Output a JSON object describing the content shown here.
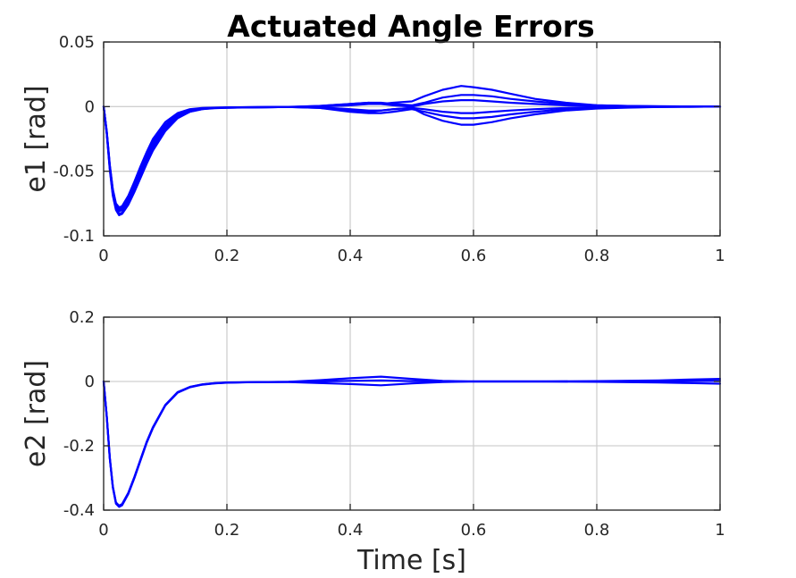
{
  "figure": {
    "title": "Actuated Angle Errors"
  },
  "colors": {
    "line": "#0000ff",
    "grid": "#d0d0d0",
    "axis": "#262626"
  },
  "chart_data": [
    {
      "type": "line",
      "title": "Actuated Angle Errors",
      "xlabel": "",
      "ylabel": "e1 [rad]",
      "xlim": [
        0,
        1
      ],
      "ylim": [
        -0.1,
        0.05
      ],
      "xticks": [
        0,
        0.2,
        0.4,
        0.6,
        0.8,
        1
      ],
      "xtick_labels": [
        "0",
        "0.2",
        "0.4",
        "0.6",
        "0.8",
        "1"
      ],
      "yticks": [
        -0.1,
        -0.05,
        0,
        0.05
      ],
      "ytick_labels": [
        "-0.1",
        "-0.05",
        "0",
        "0.05"
      ],
      "grid": true,
      "line_color": "#0000ff",
      "x": [
        0,
        0.005,
        0.01,
        0.015,
        0.02,
        0.025,
        0.03,
        0.04,
        0.05,
        0.06,
        0.07,
        0.08,
        0.1,
        0.12,
        0.14,
        0.16,
        0.18,
        0.2,
        0.25,
        0.3,
        0.35,
        0.4,
        0.43,
        0.45,
        0.47,
        0.5,
        0.52,
        0.55,
        0.58,
        0.6,
        0.63,
        0.66,
        0.7,
        0.75,
        0.8,
        0.85,
        0.9,
        0.95,
        1.0
      ],
      "series": [
        {
          "values": [
            0,
            -0.02,
            -0.046,
            -0.065,
            -0.076,
            -0.08,
            -0.079,
            -0.072,
            -0.062,
            -0.05,
            -0.039,
            -0.029,
            -0.015,
            -0.007,
            -0.003,
            -0.0015,
            -0.001,
            -0.0008,
            -0.0005,
            -0.0003,
            0,
            0.001,
            0.002,
            0.002,
            0.003,
            0.004,
            0.008,
            0.013,
            0.016,
            0.015,
            0.013,
            0.01,
            0.006,
            0.003,
            0.001,
            0.0005,
            0.0002,
            0.0001,
            0
          ]
        },
        {
          "values": [
            0,
            -0.021,
            -0.048,
            -0.068,
            -0.079,
            -0.083,
            -0.082,
            -0.075,
            -0.065,
            -0.053,
            -0.042,
            -0.032,
            -0.017,
            -0.008,
            -0.004,
            -0.002,
            -0.001,
            -0.0008,
            -0.0005,
            -0.0003,
            0.0005,
            0.002,
            0.003,
            0.003,
            0.002,
            0.001,
            0.003,
            0.007,
            0.009,
            0.009,
            0.008,
            0.006,
            0.004,
            0.002,
            0.001,
            0.0005,
            0.0002,
            0.0001,
            0
          ]
        },
        {
          "values": [
            0,
            -0.019,
            -0.045,
            -0.064,
            -0.075,
            -0.078,
            -0.077,
            -0.069,
            -0.058,
            -0.046,
            -0.035,
            -0.025,
            -0.012,
            -0.005,
            -0.002,
            -0.001,
            -0.0008,
            -0.0006,
            -0.0004,
            -0.0002,
            -0.0005,
            -0.002,
            -0.003,
            -0.003,
            -0.002,
            -0.001,
            -0.002,
            -0.004,
            -0.005,
            -0.005,
            -0.004,
            -0.003,
            -0.002,
            -0.001,
            -0.0005,
            -0.0003,
            -0.0002,
            -0.0001,
            0
          ]
        },
        {
          "values": [
            0,
            -0.02,
            -0.047,
            -0.066,
            -0.077,
            -0.081,
            -0.08,
            -0.073,
            -0.063,
            -0.051,
            -0.04,
            -0.03,
            -0.016,
            -0.008,
            -0.003,
            -0.0015,
            -0.001,
            -0.0008,
            -0.0005,
            -0.0003,
            -0.001,
            -0.004,
            -0.005,
            -0.005,
            -0.004,
            -0.002,
            -0.004,
            -0.007,
            -0.009,
            -0.009,
            -0.008,
            -0.006,
            -0.004,
            -0.002,
            -0.001,
            -0.0005,
            -0.0002,
            -0.0001,
            0
          ]
        },
        {
          "values": [
            0,
            -0.021,
            -0.049,
            -0.069,
            -0.08,
            -0.084,
            -0.083,
            -0.076,
            -0.066,
            -0.055,
            -0.044,
            -0.034,
            -0.019,
            -0.009,
            -0.004,
            -0.002,
            -0.0012,
            -0.0009,
            -0.0006,
            -0.0003,
            -0.001,
            -0.003,
            -0.004,
            -0.003,
            -0.002,
            -0.001,
            -0.006,
            -0.011,
            -0.014,
            -0.014,
            -0.012,
            -0.009,
            -0.006,
            -0.003,
            -0.0015,
            -0.0008,
            -0.0003,
            -0.0001,
            0
          ]
        },
        {
          "values": [
            0,
            -0.02,
            -0.046,
            -0.065,
            -0.076,
            -0.079,
            -0.078,
            -0.071,
            -0.06,
            -0.048,
            -0.037,
            -0.027,
            -0.014,
            -0.006,
            -0.0025,
            -0.0012,
            -0.0009,
            -0.0007,
            -0.0004,
            -0.0002,
            0.0005,
            0.002,
            0.003,
            0.002,
            0.001,
            0,
            0.002,
            0.004,
            0.005,
            0.005,
            0.004,
            0.003,
            0.002,
            0.001,
            0.0005,
            0.0002,
            0.0001,
            0,
            0
          ]
        }
      ]
    },
    {
      "type": "line",
      "title": "",
      "xlabel": "Time [s]",
      "ylabel": "e2 [rad]",
      "xlim": [
        0,
        1
      ],
      "ylim": [
        -0.4,
        0.2
      ],
      "xticks": [
        0,
        0.2,
        0.4,
        0.6,
        0.8,
        1
      ],
      "xtick_labels": [
        "0",
        "0.2",
        "0.4",
        "0.6",
        "0.8",
        "1"
      ],
      "yticks": [
        -0.4,
        -0.2,
        0,
        0.2
      ],
      "ytick_labels": [
        "-0.4",
        "-0.2",
        "0",
        "0.2"
      ],
      "grid": true,
      "line_color": "#0000ff",
      "x": [
        0,
        0.005,
        0.01,
        0.015,
        0.02,
        0.025,
        0.03,
        0.04,
        0.05,
        0.06,
        0.07,
        0.08,
        0.1,
        0.12,
        0.14,
        0.16,
        0.18,
        0.2,
        0.25,
        0.3,
        0.35,
        0.4,
        0.45,
        0.5,
        0.55,
        0.6,
        0.7,
        0.8,
        0.9,
        0.95,
        1.0
      ],
      "series": [
        {
          "values": [
            0,
            -0.11,
            -0.24,
            -0.33,
            -0.38,
            -0.39,
            -0.385,
            -0.35,
            -0.3,
            -0.245,
            -0.19,
            -0.145,
            -0.075,
            -0.035,
            -0.018,
            -0.01,
            -0.006,
            -0.004,
            -0.002,
            -0.001,
            0.004,
            0.01,
            0.015,
            0.008,
            0.002,
            0,
            0,
            0.001,
            0.003,
            0.006,
            0.008
          ]
        },
        {
          "values": [
            0,
            -0.108,
            -0.236,
            -0.326,
            -0.376,
            -0.386,
            -0.381,
            -0.346,
            -0.296,
            -0.241,
            -0.187,
            -0.142,
            -0.073,
            -0.033,
            -0.017,
            -0.009,
            -0.005,
            -0.003,
            -0.002,
            -0.002,
            -0.005,
            -0.008,
            -0.012,
            -0.006,
            -0.002,
            0,
            0,
            -0.001,
            -0.003,
            -0.005,
            -0.007
          ]
        },
        {
          "values": [
            0,
            -0.109,
            -0.238,
            -0.328,
            -0.378,
            -0.388,
            -0.383,
            -0.348,
            -0.298,
            -0.243,
            -0.188,
            -0.143,
            -0.074,
            -0.034,
            -0.017,
            -0.0095,
            -0.0055,
            -0.0035,
            -0.002,
            -0.0015,
            0,
            0.002,
            0.003,
            0.001,
            0,
            0,
            0,
            0,
            -0.001,
            0.001,
            0.002
          ]
        }
      ]
    }
  ]
}
